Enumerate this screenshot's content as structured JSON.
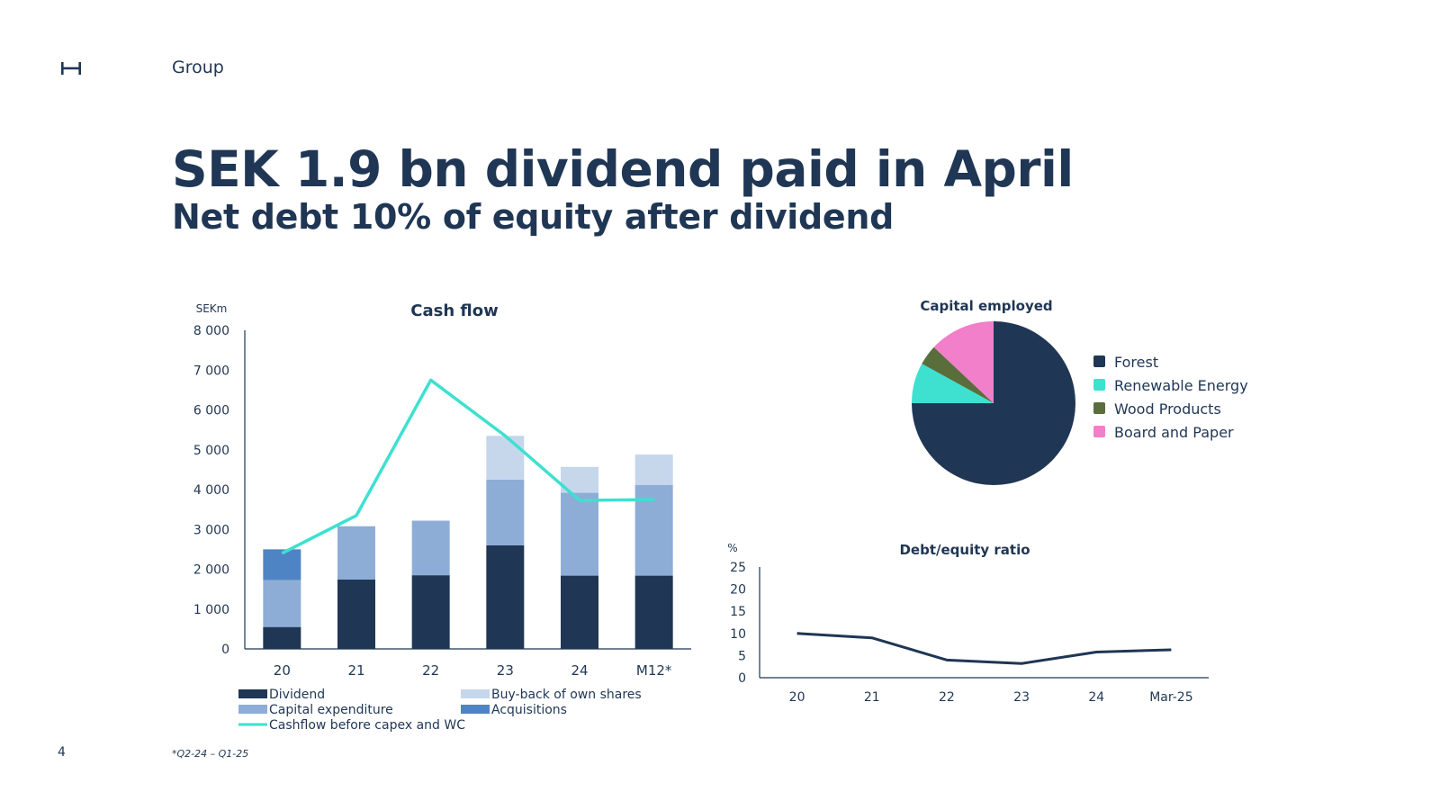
{
  "header": {
    "section": "Group"
  },
  "title": "SEK 1.9 bn dividend paid in April",
  "subtitle": "Net debt 10% of equity after dividend",
  "page_number": "4",
  "footnote": "*Q2-24 – Q1-25",
  "colors": {
    "navy": "#1f3654",
    "dividend": "#1f3654",
    "capex": "#8eadd6",
    "buyback": "#c6d7ec",
    "acquisitions": "#4f84c4",
    "cashflow_line": "#3ee0d0",
    "forest": "#1f3654",
    "renewable": "#3ee0d0",
    "wood": "#5a6e3c",
    "board": "#f27fc9"
  },
  "chart_data": [
    {
      "type": "bar",
      "stacked": true,
      "title": "Cash flow",
      "unit_label": "SEKm",
      "categories": [
        "20",
        "21",
        "22",
        "23",
        "24",
        "M12*"
      ],
      "yticks": [
        "0",
        "1 000",
        "2 000",
        "3 000",
        "4 000",
        "5 000",
        "6 000",
        "7 000",
        "8 000"
      ],
      "ylim": [
        0,
        8000
      ],
      "series": [
        {
          "name": "Dividend",
          "kind": "bar",
          "values": [
            550,
            1740,
            1850,
            2600,
            1840,
            1840
          ]
        },
        {
          "name": "Capital expenditure",
          "kind": "bar",
          "values": [
            1180,
            1340,
            1370,
            1650,
            2080,
            2280
          ]
        },
        {
          "name": "Buy-back of own shares",
          "kind": "bar",
          "values": [
            0,
            0,
            0,
            1100,
            650,
            760
          ]
        },
        {
          "name": "Acquisitions",
          "kind": "bar",
          "values": [
            770,
            0,
            0,
            0,
            0,
            0
          ]
        },
        {
          "name": "Cashflow before capex and WC",
          "kind": "line",
          "values": [
            2400,
            3350,
            6750,
            5350,
            3730,
            3750
          ]
        }
      ],
      "legend_placement": "bottom"
    },
    {
      "type": "pie",
      "title": "Capital  employed",
      "slices": [
        {
          "name": "Forest",
          "value": 75
        },
        {
          "name": "Renewable Energy",
          "value": 8
        },
        {
          "name": "Wood Products",
          "value": 4
        },
        {
          "name": "Board and Paper",
          "value": 13
        }
      ],
      "legend_placement": "right"
    },
    {
      "type": "line",
      "title": "Debt/equity ratio",
      "unit_label": "%",
      "categories": [
        "20",
        "21",
        "22",
        "23",
        "24",
        "Mar-25"
      ],
      "yticks": [
        "0",
        "5",
        "10",
        "15",
        "20",
        "25"
      ],
      "ylim": [
        0,
        25
      ],
      "values": [
        10,
        9,
        4,
        3.2,
        5.8,
        6.3
      ]
    }
  ]
}
